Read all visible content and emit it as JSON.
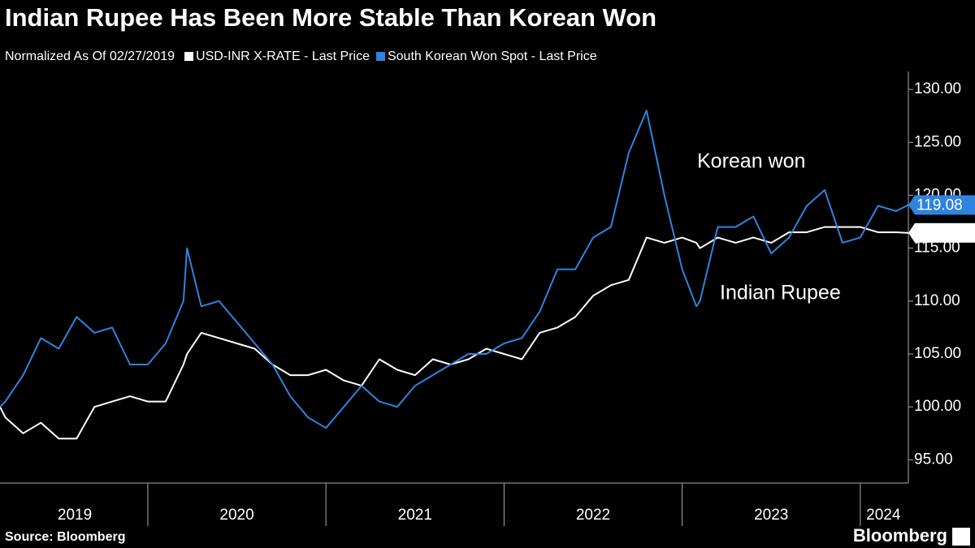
{
  "chart_data": {
    "type": "line",
    "title": "Indian Rupee Has Been More Stable Than Korean Won",
    "subtitle": "Normalized As Of 02/27/2019",
    "x": [
      2019.17,
      2019.2,
      2019.3,
      2019.4,
      2019.5,
      2019.6,
      2019.7,
      2019.8,
      2019.9,
      2020.0,
      2020.1,
      2020.2,
      2020.22,
      2020.3,
      2020.4,
      2020.5,
      2020.6,
      2020.7,
      2020.8,
      2020.9,
      2021.0,
      2021.1,
      2021.2,
      2021.3,
      2021.4,
      2021.5,
      2021.6,
      2021.7,
      2021.8,
      2021.9,
      2022.0,
      2022.1,
      2022.2,
      2022.3,
      2022.4,
      2022.5,
      2022.6,
      2022.7,
      2022.8,
      2022.9,
      2023.0,
      2023.08,
      2023.1,
      2023.2,
      2023.3,
      2023.4,
      2023.5,
      2023.6,
      2023.7,
      2023.8,
      2023.9,
      2024.0,
      2024.1,
      2024.2,
      2024.27
    ],
    "series": [
      {
        "name": "USD-INR X-RATE - Last Price",
        "color": "#ffffff",
        "values": [
          100,
          99,
          97.5,
          98.5,
          97,
          97,
          100,
          100.5,
          101,
          100.5,
          100.5,
          104,
          105,
          107,
          106.5,
          106,
          105.5,
          104,
          103,
          103,
          103.5,
          102.5,
          102,
          104.5,
          103.5,
          103,
          104.5,
          104,
          104.5,
          105.5,
          105,
          104.5,
          107,
          107.5,
          108.5,
          110.5,
          111.5,
          112,
          116,
          115.5,
          116,
          115.5,
          115,
          116,
          115.5,
          116,
          115.5,
          116.5,
          116.5,
          117,
          117,
          117,
          116.5,
          116.5,
          116.44
        ]
      },
      {
        "name": "South Korean Won Spot - Last Price",
        "color": "#2f83e0",
        "values": [
          100,
          100.5,
          103,
          106.5,
          105.5,
          108.5,
          107,
          107.5,
          104,
          104,
          106,
          110,
          115,
          109.5,
          110,
          108,
          106,
          104,
          101,
          99,
          98,
          100,
          102,
          100.5,
          100,
          102,
          103,
          104,
          105,
          105,
          106,
          106.5,
          109,
          113,
          113,
          116,
          117,
          124,
          128,
          120,
          113,
          109.5,
          110,
          117,
          117,
          118,
          114.5,
          116,
          119,
          120.5,
          115.5,
          116,
          119,
          118.5,
          119.08
        ]
      }
    ],
    "annotations": [
      "Korean won",
      "Indian Rupee"
    ],
    "xlim": [
      2019.17,
      2024.27
    ],
    "xticks": [
      {
        "value": 2019.59,
        "label": "2019"
      },
      {
        "value": 2020.5,
        "label": "2020"
      },
      {
        "value": 2021.5,
        "label": "2021"
      },
      {
        "value": 2022.5,
        "label": "2022"
      },
      {
        "value": 2023.5,
        "label": "2023"
      },
      {
        "value": 2024.13,
        "label": "2024"
      }
    ],
    "ylim": [
      92.8,
      131.7
    ],
    "yticks": [
      {
        "value": 95,
        "label": "95.00"
      },
      {
        "value": 100,
        "label": "100.00"
      },
      {
        "value": 105,
        "label": "105.00"
      },
      {
        "value": 110,
        "label": "110.00"
      },
      {
        "value": 115,
        "label": "115.00"
      },
      {
        "value": 120,
        "label": "120.00"
      },
      {
        "value": 125,
        "label": "125.00"
      },
      {
        "value": 130,
        "label": "130.00"
      }
    ],
    "grid": false,
    "source": "Source: Bloomberg",
    "logo": "Bloomberg"
  }
}
